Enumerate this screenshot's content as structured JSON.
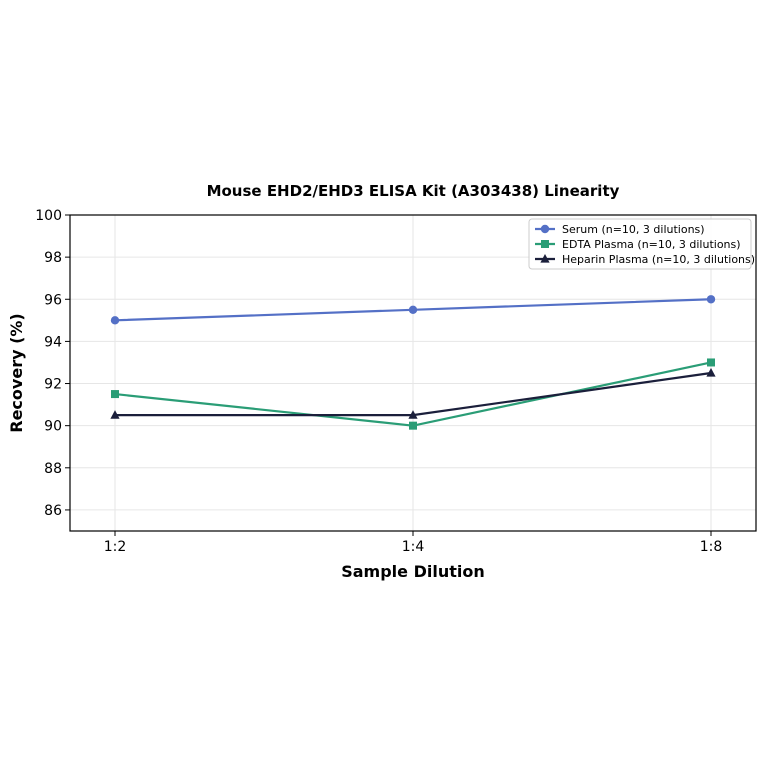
{
  "chart_data": {
    "type": "line",
    "title": "Mouse EHD2/EHD3 ELISA Kit (A303438) Linearity",
    "xlabel": "Sample Dilution",
    "ylabel": "Recovery (%)",
    "categories": [
      "1:2",
      "1:4",
      "1:8"
    ],
    "ylim": [
      85,
      100
    ],
    "yticks": [
      86,
      88,
      90,
      92,
      94,
      96,
      98,
      100
    ],
    "grid": true,
    "legend_position": "top-right",
    "series": [
      {
        "name": "Serum (n=10, 3 dilutions)",
        "values": [
          95.0,
          95.5,
          96.0
        ],
        "color": "#5470c6",
        "marker": "circle"
      },
      {
        "name": "EDTA Plasma (n=10, 3 dilutions)",
        "values": [
          91.5,
          90.0,
          93.0
        ],
        "color": "#2a9d76",
        "marker": "square"
      },
      {
        "name": "Heparin Plasma (n=10, 3 dilutions)",
        "values": [
          90.5,
          90.5,
          92.5
        ],
        "color": "#1b1f3b",
        "marker": "triangle"
      }
    ]
  }
}
